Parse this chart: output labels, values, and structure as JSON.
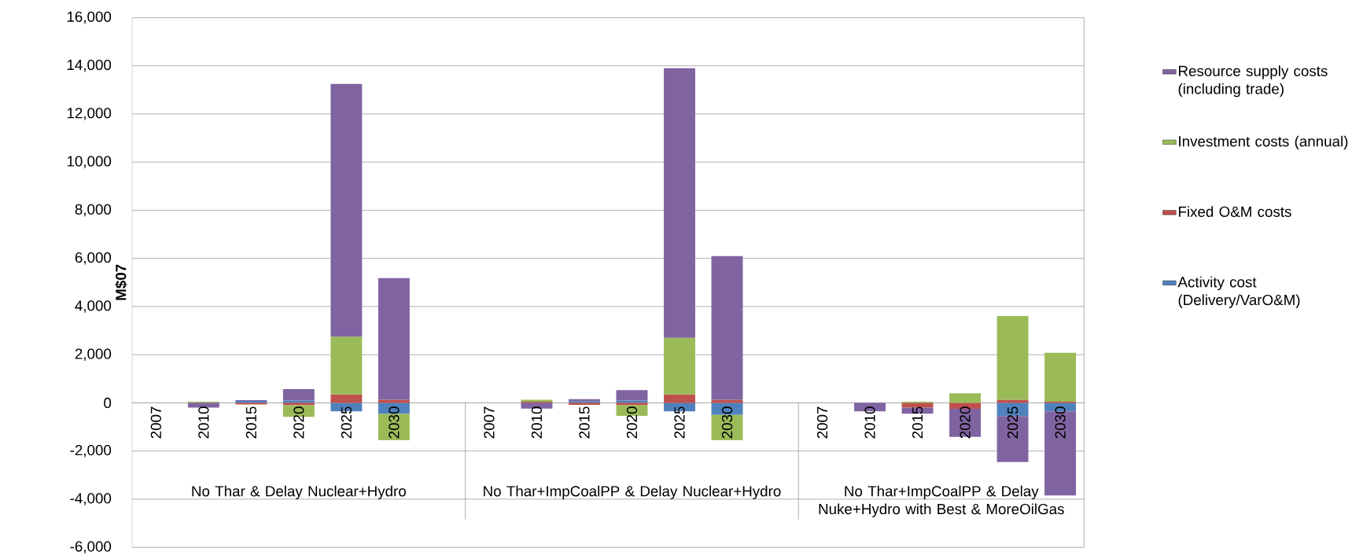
{
  "chart_data": {
    "type": "bar",
    "stacked": true,
    "ylabel": "M$07",
    "categories": [
      "2007",
      "2010",
      "2015",
      "2020",
      "2025",
      "2030",
      null,
      "2007",
      "2010",
      "2015",
      "2020",
      "2025",
      "2030",
      null,
      "2007",
      "2010",
      "2015",
      "2020",
      "2025",
      "2030"
    ],
    "series": [
      {
        "name": "Activity cost (Delivery/VarO&M)",
        "color": "#4f81bd",
        "values": [
          0,
          0,
          80,
          100,
          -350,
          -460,
          null,
          0,
          0,
          70,
          100,
          -350,
          -500,
          null,
          0,
          0,
          0,
          0,
          -550,
          -350
        ]
      },
      {
        "name": "Fixed O&M costs",
        "color": "#c0504d",
        "values": [
          0,
          0,
          -70,
          -100,
          350,
          130,
          null,
          0,
          50,
          -80,
          -100,
          350,
          130,
          null,
          0,
          0,
          -200,
          -250,
          130,
          50
        ]
      },
      {
        "name": "Investment costs (annual)",
        "color": "#9bbb59",
        "values": [
          0,
          50,
          0,
          -480,
          2400,
          -1090,
          null,
          0,
          80,
          0,
          -440,
          2350,
          -1050,
          null,
          0,
          0,
          50,
          400,
          3480,
          2030
        ]
      },
      {
        "name": "Resource supply costs (including trade)",
        "color": "#8064a2",
        "values": [
          0,
          -200,
          30,
          470,
          10500,
          5050,
          null,
          0,
          -240,
          80,
          430,
          11200,
          5970,
          null,
          0,
          -350,
          -250,
          -1160,
          -1910,
          -3500
        ]
      }
    ],
    "ylim": [
      -6000,
      16000
    ],
    "yticks": [
      {
        "value": -6000,
        "label": "-6,000"
      },
      {
        "value": -4000,
        "label": "-4,000"
      },
      {
        "value": -2000,
        "label": "-2,000"
      },
      {
        "value": 0,
        "label": "0"
      },
      {
        "value": 2000,
        "label": "2,000"
      },
      {
        "value": 4000,
        "label": "4,000"
      },
      {
        "value": 6000,
        "label": "6,000"
      },
      {
        "value": 8000,
        "label": "8,000"
      },
      {
        "value": 10000,
        "label": "10,000"
      },
      {
        "value": 12000,
        "label": "12,000"
      },
      {
        "value": 14000,
        "label": "14,000"
      },
      {
        "value": 16000,
        "label": "16,000"
      }
    ],
    "grid": "y",
    "legend": "right",
    "annotations": [
      "No Thar & Delay Nuclear+Hydro",
      "No Thar+ImpCoalPP & Delay Nuclear+Hydro",
      "No Thar+ImpCoalPP & Delay Nuke+Hydro with Best & MoreOilGas"
    ]
  }
}
